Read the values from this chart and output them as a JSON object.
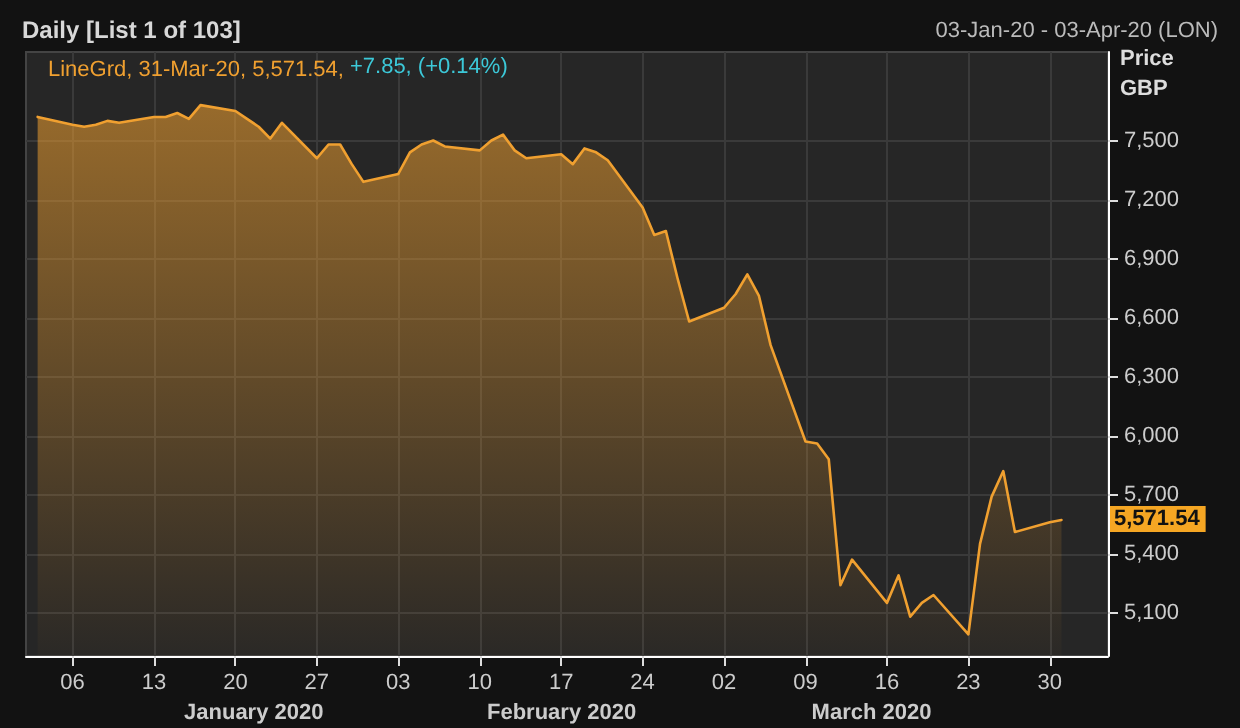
{
  "chart_data": {
    "type": "area",
    "title": "Daily [List 1 of 103]",
    "subtitle": "03-Jan-20 - 03-Apr-20 (LON)",
    "ylabel": "Price GBP",
    "annotations": [
      {
        "text": "5,571.54",
        "x": "2020-03-31",
        "y": 5571.54
      },
      "+7.85, (+0.14%)",
      "January 2020",
      "February 2020",
      "March 2020"
    ],
    "x": [
      "2020-01-03",
      "2020-01-06",
      "2020-01-07",
      "2020-01-08",
      "2020-01-09",
      "2020-01-10",
      "2020-01-13",
      "2020-01-14",
      "2020-01-15",
      "2020-01-16",
      "2020-01-17",
      "2020-01-20",
      "2020-01-21",
      "2020-01-22",
      "2020-01-23",
      "2020-01-24",
      "2020-01-27",
      "2020-01-28",
      "2020-01-29",
      "2020-01-30",
      "2020-01-31",
      "2020-02-03",
      "2020-02-04",
      "2020-02-05",
      "2020-02-06",
      "2020-02-07",
      "2020-02-10",
      "2020-02-11",
      "2020-02-12",
      "2020-02-13",
      "2020-02-14",
      "2020-02-17",
      "2020-02-18",
      "2020-02-19",
      "2020-02-20",
      "2020-02-21",
      "2020-02-24",
      "2020-02-25",
      "2020-02-26",
      "2020-02-27",
      "2020-02-28",
      "2020-03-02",
      "2020-03-03",
      "2020-03-04",
      "2020-03-05",
      "2020-03-06",
      "2020-03-09",
      "2020-03-10",
      "2020-03-11",
      "2020-03-12",
      "2020-03-13",
      "2020-03-16",
      "2020-03-17",
      "2020-03-18",
      "2020-03-19",
      "2020-03-20",
      "2020-03-23",
      "2020-03-24",
      "2020-03-25",
      "2020-03-26",
      "2020-03-27",
      "2020-03-30",
      "2020-03-31"
    ],
    "series": [
      {
        "name": "LineGrd, 31-Mar-20, 5,571.54,",
        "color": "#f0a030",
        "values": [
          7620,
          7580,
          7570,
          7580,
          7600,
          7590,
          7620,
          7620,
          7640,
          7610,
          7680,
          7650,
          7610,
          7570,
          7510,
          7590,
          7410,
          7480,
          7480,
          7380,
          7290,
          7330,
          7440,
          7480,
          7500,
          7470,
          7450,
          7500,
          7530,
          7450,
          7410,
          7430,
          7380,
          7460,
          7440,
          7400,
          7160,
          7020,
          7040,
          6800,
          6580,
          6650,
          6720,
          6820,
          6710,
          6460,
          5970,
          5960,
          5880,
          5240,
          5370,
          5150,
          5290,
          5080,
          5150,
          5190,
          4990,
          5450,
          5690,
          5820,
          5510,
          5560,
          5571.54
        ]
      }
    ],
    "xlim": [
      "2020-01-02",
      "2020-04-04"
    ],
    "xticks": [
      {
        "value": "2020-01-06",
        "label": "06"
      },
      {
        "value": "2020-01-13",
        "label": "13"
      },
      {
        "value": "2020-01-20",
        "label": "20"
      },
      {
        "value": "2020-01-27",
        "label": "27"
      },
      {
        "value": "2020-02-03",
        "label": "03"
      },
      {
        "value": "2020-02-10",
        "label": "10"
      },
      {
        "value": "2020-02-17",
        "label": "17"
      },
      {
        "value": "2020-02-24",
        "label": "24"
      },
      {
        "value": "2020-03-02",
        "label": "02"
      },
      {
        "value": "2020-03-09",
        "label": "09"
      },
      {
        "value": "2020-03-16",
        "label": "16"
      },
      {
        "value": "2020-03-23",
        "label": "23"
      },
      {
        "value": "2020-03-30",
        "label": "30"
      }
    ],
    "ylim": [
      4880,
      7950
    ],
    "yticks": [
      {
        "value": 5100,
        "label": "5,100"
      },
      {
        "value": 5400,
        "label": "5,400"
      },
      {
        "value": 5700,
        "label": "5,700"
      },
      {
        "value": 6000,
        "label": "6,000"
      },
      {
        "value": 6300,
        "label": "6,300"
      },
      {
        "value": 6600,
        "label": "6,600"
      },
      {
        "value": 6900,
        "label": "6,900"
      },
      {
        "value": 7200,
        "label": "7,200"
      },
      {
        "value": 7500,
        "label": "7,500"
      }
    ],
    "grid": true,
    "legend": "top left",
    "marker": "none",
    "line_style": "solid"
  }
}
